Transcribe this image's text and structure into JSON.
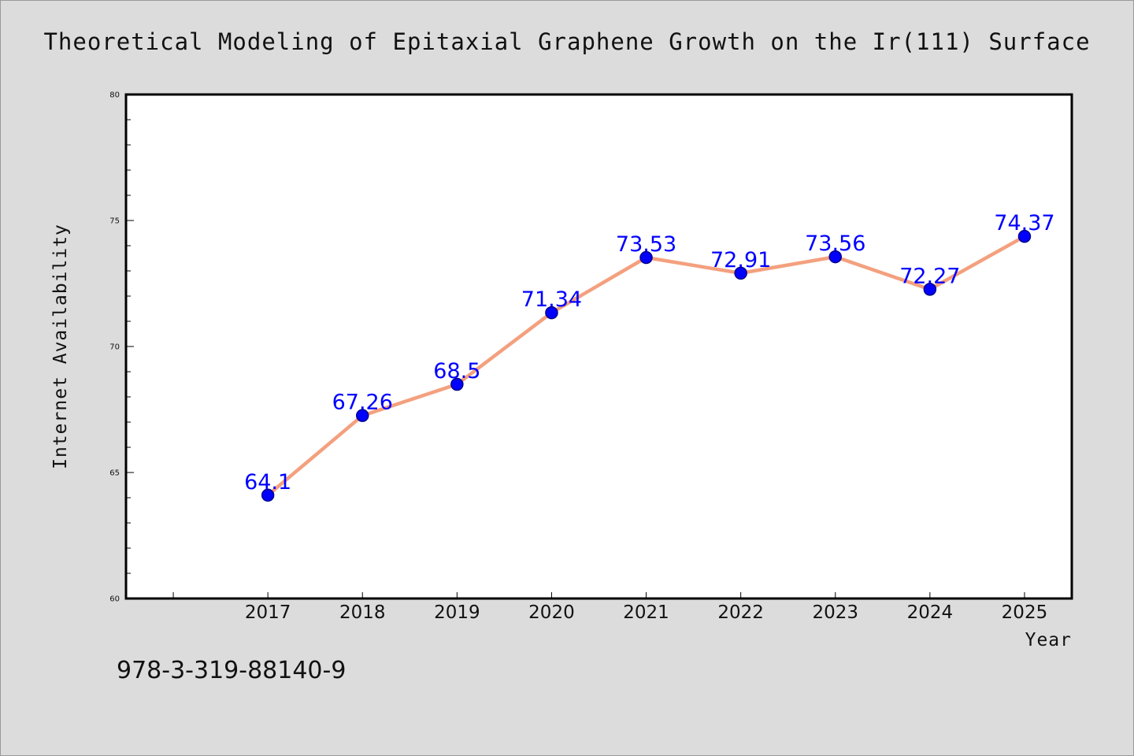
{
  "chart_data": {
    "type": "line",
    "title": "Theoretical Modeling of Epitaxial Graphene Growth on the Ir(111) Surface",
    "xlabel": "Year",
    "ylabel": "Internet Availability",
    "categories": [
      "2017",
      "2018",
      "2019",
      "2020",
      "2021",
      "2022",
      "2023",
      "2024",
      "2025"
    ],
    "series": [
      {
        "values": [
          64.1,
          67.26,
          68.5,
          71.34,
          73.53,
          72.91,
          73.56,
          72.27,
          74.37
        ],
        "labels": [
          "64.1",
          "67.26",
          "68.5",
          "71.34",
          "73.53",
          "72.91",
          "73.56",
          "72.27",
          "74.37"
        ]
      }
    ],
    "ylim": [
      60,
      80
    ],
    "yticks": [
      "60",
      "65",
      "70",
      "75",
      "80"
    ],
    "grid": false,
    "legend": "none",
    "colors": {
      "line": "#f4a07e",
      "marker": "#0000ff",
      "marker_edge": "#00008b",
      "data_label": "#0000ff",
      "plot_bg": "#ffffff",
      "page_bg": "#dcdcdc"
    }
  },
  "footer": {
    "isbn": "978-3-319-88140-9"
  }
}
